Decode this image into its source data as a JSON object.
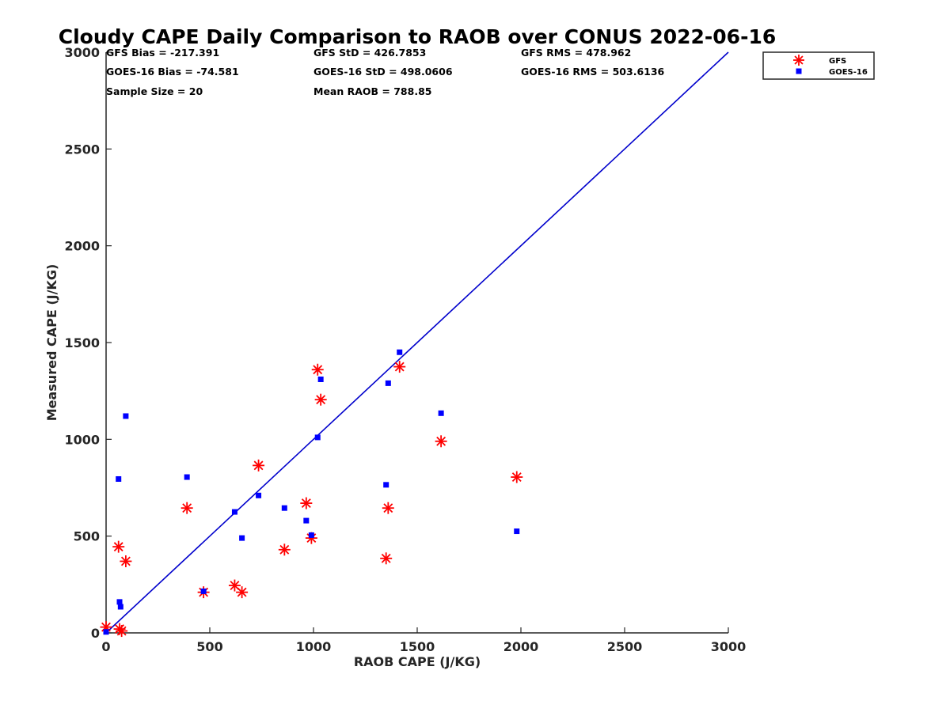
{
  "chart_data": {
    "type": "scatter",
    "title": "Cloudy CAPE Daily Comparison to RAOB over CONUS 2022-06-16",
    "xlabel": "RAOB CAPE (J/KG)",
    "ylabel": "Measured CAPE (J/KG)",
    "xlim": [
      0,
      3000
    ],
    "ylim": [
      0,
      3000
    ],
    "xticks": [
      "0",
      "500",
      "1000",
      "1500",
      "2000",
      "2500",
      "3000"
    ],
    "yticks": [
      "0",
      "500",
      "1000",
      "1500",
      "2000",
      "2500",
      "3000"
    ],
    "grid": false,
    "legend_placement": "outside-top-right",
    "reference_line": {
      "x": [
        0,
        3000
      ],
      "y": [
        0,
        3000
      ],
      "color": "#0000cc"
    },
    "stats": [
      "GFS Bias = -217.391",
      "GFS StD = 426.7853",
      "GFS RMS = 478.962",
      "GOES-16 Bias = -74.581",
      "GOES-16 StD = 498.0606",
      "GOES-16 RMS = 503.6136",
      "Sample Size = 20",
      "Mean RAOB = 788.85"
    ],
    "series": [
      {
        "name": "GFS",
        "marker": "asterisk",
        "color": "#ff0000",
        "points": [
          [
            0,
            30
          ],
          [
            60,
            445
          ],
          [
            65,
            20
          ],
          [
            75,
            10
          ],
          [
            95,
            370
          ],
          [
            390,
            645
          ],
          [
            470,
            210
          ],
          [
            620,
            245
          ],
          [
            655,
            210
          ],
          [
            735,
            865
          ],
          [
            860,
            430
          ],
          [
            965,
            670
          ],
          [
            990,
            490
          ],
          [
            1020,
            1360
          ],
          [
            1035,
            1205
          ],
          [
            1350,
            385
          ],
          [
            1360,
            645
          ],
          [
            1415,
            1375
          ],
          [
            1615,
            990
          ],
          [
            1980,
            805
          ]
        ]
      },
      {
        "name": "GOES-16",
        "marker": "square",
        "color": "#0000ff",
        "points": [
          [
            0,
            5
          ],
          [
            60,
            795
          ],
          [
            65,
            160
          ],
          [
            70,
            135
          ],
          [
            95,
            1120
          ],
          [
            390,
            805
          ],
          [
            470,
            215
          ],
          [
            620,
            625
          ],
          [
            655,
            490
          ],
          [
            735,
            710
          ],
          [
            860,
            645
          ],
          [
            965,
            580
          ],
          [
            990,
            505
          ],
          [
            1020,
            1010
          ],
          [
            1035,
            1310
          ],
          [
            1350,
            765
          ],
          [
            1360,
            1290
          ],
          [
            1415,
            1450
          ],
          [
            1615,
            1135
          ],
          [
            1980,
            525
          ]
        ]
      }
    ]
  }
}
